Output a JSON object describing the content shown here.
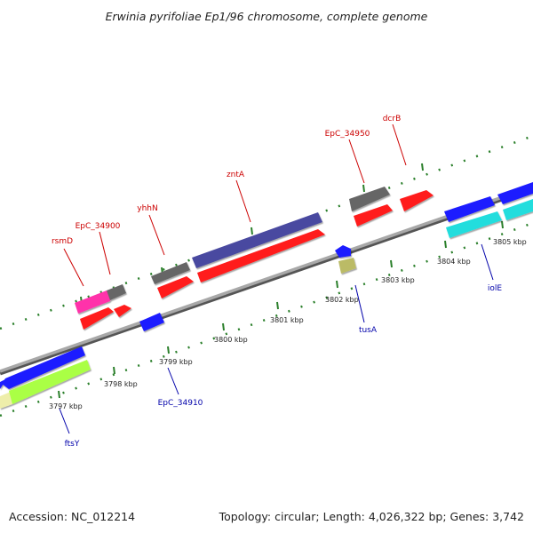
{
  "title": "Erwinia pyrifoliae Ep1/96 chromosome, complete genome",
  "footer": {
    "accession": "Accession: NC_012214",
    "summary": "Topology: circular; Length: 4,026,322 bp; Genes: 3,742"
  },
  "colors": {
    "backbone": "#8c8c8c",
    "tick": "#2a7f2a",
    "label_top": "#cc0000",
    "label_bottom": "#0000aa",
    "red": "#ff1a1a",
    "grey": "#6a6a6a",
    "blue": "#1a1aff",
    "navy": "#4a4aa0",
    "magenta": "#ff33aa",
    "cyan": "#22dddd",
    "lime": "#aaff44",
    "yellowish": "#eeeeaa",
    "khaki": "#bbbb66"
  },
  "kbp_labels": [
    "3797 kbp",
    "3798 kbp",
    "3799 kbp",
    "3800 kbp",
    "3801 kbp",
    "3802 kbp",
    "3803 kbp",
    "3804 kbp",
    "3805 kbp"
  ],
  "gene_labels_top": [
    "rsmD",
    "EpC_34900",
    "yhhN",
    "zntA",
    "EpC_34950",
    "dcrB"
  ],
  "gene_labels_bottom": [
    "ftsY",
    "EpC_34910",
    "tusA",
    "iolE"
  ]
}
